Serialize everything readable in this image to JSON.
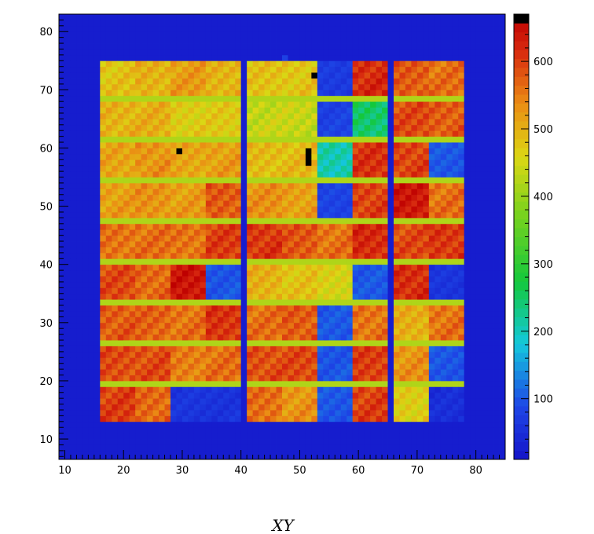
{
  "chart_data": {
    "type": "heatmap",
    "xlabel": "XY",
    "ylabel": "",
    "title": "",
    "xlim": [
      9,
      85
    ],
    "ylim": [
      6.5,
      83
    ],
    "x_ticks": [
      10,
      20,
      30,
      40,
      50,
      60,
      70,
      80
    ],
    "y_ticks": [
      10,
      20,
      30,
      40,
      50,
      60,
      70,
      80
    ],
    "colorbar": {
      "min": 10,
      "max": 670,
      "ticks": [
        100,
        200,
        300,
        400,
        500,
        600
      ]
    },
    "grid": false,
    "cell_size": 1,
    "background_value": 25,
    "module_size": 6,
    "gap_value": 420,
    "module_columns": [
      {
        "x0": 16,
        "values": [
          600,
          590,
          580,
          590,
          560,
          520,
          510,
          500,
          480
        ]
      },
      {
        "x0": 22,
        "values": [
          570,
          590,
          570,
          570,
          560,
          530,
          530,
          500,
          500
        ]
      },
      {
        "x0": 28,
        "values": [
          60,
          550,
          560,
          640,
          560,
          520,
          510,
          470,
          520
        ]
      },
      {
        "x0": 34,
        "values": [
          60,
          560,
          610,
          100,
          600,
          580,
          520,
          470,
          500
        ]
      },
      {
        "x0": 41,
        "values": [
          560,
          590,
          560,
          500,
          610,
          530,
          490,
          440,
          480
        ]
      },
      {
        "x0": 47,
        "values": [
          530,
          590,
          580,
          480,
          580,
          520,
          490,
          440,
          480
        ]
      },
      {
        "x0": 53,
        "values": [
          100,
          100,
          100,
          460,
          560,
          80,
          210,
          80,
          70
        ]
      },
      {
        "x0": 59,
        "values": [
          600,
          600,
          560,
          100,
          620,
          600,
          610,
          250,
          620
        ]
      },
      {
        "x0": 66,
        "values": [
          470,
          530,
          500,
          620,
          590,
          640,
          600,
          590,
          580
        ]
      },
      {
        "x0": 72,
        "values": [
          50,
          100,
          560,
          60,
          610,
          560,
          100,
          580,
          560
        ]
      }
    ],
    "spot_max_cells": [
      {
        "x": 29,
        "y": 59
      },
      {
        "x": 51,
        "y": 57
      },
      {
        "x": 51,
        "y": 58
      },
      {
        "x": 51,
        "y": 59
      },
      {
        "x": 52,
        "y": 72
      }
    ]
  }
}
